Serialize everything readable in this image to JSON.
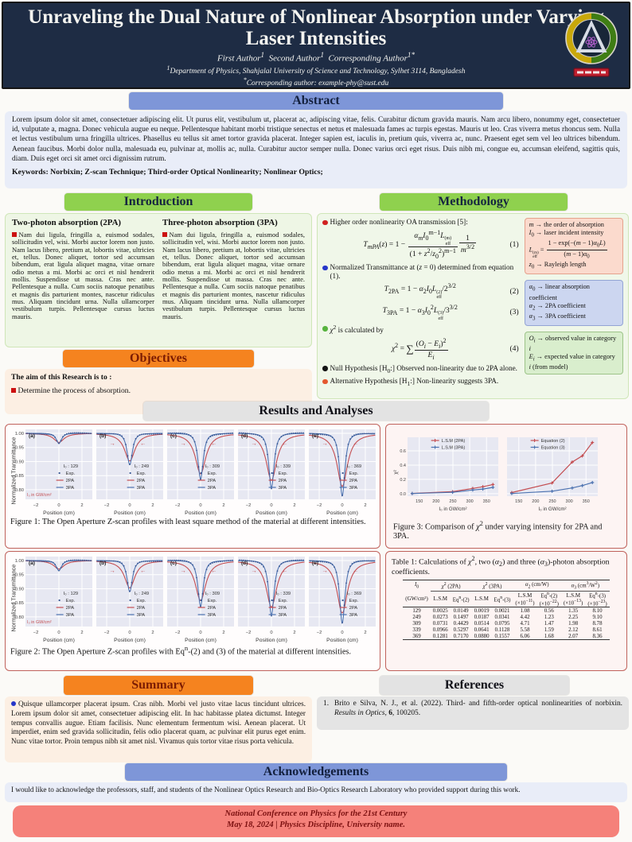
{
  "poster": {
    "title": "Unraveling the Dual Nature of Nonlinear Absorption under Varying Laser Intensities",
    "authors_html": "First Author<sup>1</sup>&nbsp;&nbsp;Second Author<sup>1</sup>&nbsp;&nbsp;Corresponding Author<sup>1*</sup>",
    "affiliation_html": "<sup>1</sup>Department of Physics, Shahjalal University of Science and Technology, Sylhet 3114, Bangladesh",
    "corresponding_html": "<sup>*</sup>Corresponding author: example-phy@sust.edu",
    "logo_name": "university-logo"
  },
  "abstract": {
    "heading": "Abstract",
    "body": "Lorem ipsum dolor sit amet, consectetuer adipiscing elit. Ut purus elit, vestibulum ut, placerat ac, adipiscing vitae, felis. Curabitur dictum gravida mauris. Nam arcu libero, nonummy eget, consectetuer id, vulputate a, magna. Donec vehicula augue eu neque. Pellentesque habitant morbi tristique senectus et netus et malesuada fames ac turpis egestas. Mauris ut leo. Cras viverra metus rhoncus sem. Nulla et lectus vestibulum urna fringilla ultrices. Phasellus eu tellus sit amet tortor gravida placerat. Integer sapien est, iaculis in, pretium quis, viverra ac, nunc. Praesent eget sem vel leo ultrices bibendum. Aenean faucibus. Morbi dolor nulla, malesuada eu, pulvinar at, mollis ac, nulla. Curabitur auctor semper nulla. Donec varius orci eget risus. Duis nibh mi, congue eu, accumsan eleifend, sagittis quis, diam. Duis eget orci sit amet orci dignissim rutrum.",
    "keywords": "Keywords: Norbixin; Z-scan Technique; Third-order Optical Nonlinearity; Nonlinear Optics;"
  },
  "introduction": {
    "heading": "Introduction",
    "columns": [
      {
        "title": "Two-photon absorption (2PA)",
        "body": "Nam dui ligula, fringilla a, euismod sodales, sollicitudin vel, wisi. Morbi auctor lorem non justo. Nam lacus libero, pretium at, lobortis vitae, ultricies et, tellus. Donec aliquet, tortor sed accumsan bibendum, erat ligula aliquet magna, vitae ornare odio metus a mi. Morbi ac orci et nisl hendrerit mollis. Suspendisse ut massa. Cras nec ante. Pellentesque a nulla. Cum sociis natoque penatibus et magnis dis parturient montes, nascetur ridiculus mus. Aliquam tincidunt urna. Nulla ullamcorper vestibulum turpis. Pellentesque cursus luctus mauris."
      },
      {
        "title": "Three-photon absorption (3PA)",
        "body": "Nam dui ligula, fringilla a, euismod sodales, sollicitudin vel, wisi. Morbi auctor lorem non justo. Nam lacus libero, pretium at, lobortis vitae, ultricies et, tellus. Donec aliquet, tortor sed accumsan bibendum, erat ligula aliquet magna, vitae ornare odio metus a mi. Morbi ac orci et nisl hendrerit mollis. Suspendisse ut massa. Cras nec ante. Pellentesque a nulla. Cum sociis natoque penatibus et magnis dis parturient montes, nascetur ridiculus mus. Aliquam tincidunt urna. Nulla ullamcorper vestibulum turpis. Pellentesque cursus luctus mauris."
      }
    ]
  },
  "objectives": {
    "heading": "Objectives",
    "lead": "The aim of this Research is to :",
    "items": [
      "Determine the process of absorption."
    ]
  },
  "methodology": {
    "heading": "Methodology",
    "items": [
      {
        "t": "b",
        "c": "#d02020",
        "h": "Higher order nonlinearity OA transmission [5]:"
      },
      {
        "t": "e",
        "tag": "(1)",
        "h": "<i>T<sub>mPA</sub></i>(<i>z</i>) = 1 − <span class='frac'><span class='nu'><i>α<sub>m</sub></i><i>I</i><sub>0</sub><sup>m−1</sup><i>L</i><span class='stk'><span>(m)</span><span>eff</span></span></span><span class='de'>(1 + <i>z</i><sup>2</sup>/<i>z</i><sub>0</sub><sup>2</sup>)<sup>m−1</sup></span></span><span class='frac'><span class='nu'>1</span><span class='de'><i>m</i><sup>3/2</sup></span></span>"
      },
      {
        "t": "b",
        "c": "#2636c9",
        "h": "Normalized Transmittance at (<i>z</i> = 0) determined from equation (1)."
      },
      {
        "t": "e",
        "tag": "(2)",
        "h": "<i>T</i><sub>2PA</sub> = 1 − <i>α</i><sub>2</sub><i>I</i><sub>0</sub><i>L</i><span class='stk'><span>(2)</span><span>eff</span></span>/2<sup>3/2</sup>"
      },
      {
        "t": "e",
        "tag": "(3)",
        "h": "<i>T</i><sub>3PA</sub> = 1 − <i>α</i><sub>3</sub><i>I</i><sub>0</sub><sup>2</sup><i>L</i><span class='stk'><span>(3)</span><span>eff</span></span>/3<sup>3/2</sup>"
      },
      {
        "t": "b",
        "c": "#57b33e",
        "h": "<i>χ</i><sup>2</sup> is calculated by"
      },
      {
        "t": "e",
        "tag": "(4)",
        "h": "<i>χ</i><sup>2</sup> = <span class='sigma'>∑</span><span class='frac'><span class='nu'>(<i>O<sub>i</sub></i> − <i>E<sub>i</sub></i>)<sup>2</sup></span><span class='de'><i>E<sub>i</sub></i></span></span>"
      },
      {
        "t": "b",
        "c": "#141414",
        "h": "Null Hypothesis [H<sub>0</sub>:] Observed non-linearity due to 2PA alone."
      },
      {
        "t": "b",
        "c": "#e4572e",
        "h": "Alternative Hypothesis [H<sub>1</sub>:] Non-linearity suggests 3PA."
      }
    ],
    "boxes": [
      {
        "bg": "#fbdacd",
        "border": "#e5a28c",
        "lines": [
          "<i>m</i> → the order of absorption",
          "<i>I</i><sub>0</sub> → laser incident intensity",
          "<i>L</i><span class='stk'><span>(m)</span><span>eff</span></span> = <span class='frac'><span class='nu'>1 − exp(−(<i>m</i> − 1)<i>α</i><sub>0</sub><i>L</i>)</span><span class='de'>(<i>m</i> − 1)<i>α</i><sub>0</sub></span></span>",
          "<i>z</i><sub>0</sub> → Rayleigh length"
        ]
      },
      {
        "bg": "#ccd6f0",
        "border": "#93a4d4",
        "lines": [
          "<i>α</i><sub>0</sub> → linear absorption coefficient",
          "<i>α</i><sub>2</sub> → 2PA coefficient",
          "<i>α</i><sub>3</sub> → 3PA coefficient"
        ]
      },
      {
        "bg": "#d9eecd",
        "border": "#9dc489",
        "lines": [
          "<i>O<sub>i</sub></i> → observed value in category <i>i</i>",
          "<i>E<sub>i</sub></i> → expected value in category <i>i</i> (from model)"
        ]
      }
    ]
  },
  "results": {
    "heading": "Results and Analyses"
  },
  "figures": {
    "fig1_caption_html": "Figure 1: The Open Aperture Z-scan profiles with least square method of the material at different intensities.",
    "fig2_caption_html": "Figure 2: The Open Aperture Z-scan profiles with Eq<sup>n</sup>-(2) and (3) of the material at different intensities.",
    "fig3_caption_html": "Figure 3: Comparison of <i>χ</i><sup>2</sup> under varying intensity for 2PA and 3PA."
  },
  "table1": {
    "caption_html": "Table 1: Calculations of <i>χ</i><sup>2</sup>, two (<i>α</i><sub>2</sub>) and three (<i>α</i><sub>3</sub>)-photon absorption coefficients.",
    "group_headers": [
      {
        "html": "<i>I</i><sub>0</sub>",
        "span": 1,
        "line": false
      },
      {
        "html": "<i>χ</i><sup>2</sup> (2PA)",
        "span": 2,
        "line": true
      },
      {
        "html": "<i>χ</i><sup>2</sup> (3PA)",
        "span": 2,
        "line": true
      },
      {
        "html": "<i>α</i><sub>2</sub> (cm/W)",
        "span": 2,
        "line": true
      },
      {
        "html": "<i>α</i><sub>3</sub> (cm<sup>3</sup>/W<sup>2</sup>)",
        "span": 2,
        "line": true
      }
    ],
    "sub_headers": [
      "(GW/cm²)",
      "L.S.M",
      "Eq<sup>n</sup>-(2)",
      "L.S.M",
      "Eq<sup>n</sup>-(3)",
      "L.S.M<br>(×10<sup>−11</sup>)",
      "Eq<sup>n</sup>-(2)<br>(×10<sup>−22</sup>)",
      "L.S.M<br>(×10<sup>−13</sup>)",
      "Eq<sup>n</sup>-(3)<br>(×10<sup>−23</sup>)"
    ],
    "rows": [
      [
        "129",
        "0.0025",
        "0.0149",
        "0.0019",
        "0.0021",
        "1.08",
        "0.56",
        "1.35",
        "8.10"
      ],
      [
        "249",
        "0.0273",
        "0.1497",
        "0.0187",
        "0.0341",
        "4.42",
        "1.23",
        "2.25",
        "9.10"
      ],
      [
        "309",
        "0.0731",
        "0.4429",
        "0.0514",
        "0.0795",
        "4.71",
        "1.47",
        "1.98",
        "8.78"
      ],
      [
        "339",
        "0.0966",
        "0.5297",
        "0.0641",
        "0.1128",
        "5.58",
        "1.59",
        "2.12",
        "8.61"
      ],
      [
        "369",
        "0.1281",
        "0.7170",
        "0.0880",
        "0.1557",
        "6.06",
        "1.68",
        "2.07",
        "8.36"
      ]
    ]
  },
  "summary": {
    "heading": "Summary",
    "body": "Quisque ullamcorper placerat ipsum. Cras nibh. Morbi vel justo vitae lacus tincidunt ultrices. Lorem ipsum dolor sit amet, consectetuer adipiscing elit. In hac habitasse platea dictumst. Integer tempus convallis augue. Etiam facilisis. Nunc elementum fermentum wisi. Aenean placerat. Ut imperdiet, enim sed gravida sollicitudin, felis odio placerat quam, ac pulvinar elit purus eget enim. Nunc vitae tortor. Proin tempus nibh sit amet nisl. Vivamus quis tortor vitae risus porta vehicula."
  },
  "references": {
    "heading": "References",
    "items": [
      {
        "num": "1.",
        "html": "Brito e Silva, N. J., et al. (2022).  Third- and fifth-order optical nonlinearities of norbixin. <i>Results in Optics</i>, <b>6</b>, 100205."
      }
    ]
  },
  "acknowledgements": {
    "heading": "Acknowledgements",
    "body": "I would like to acknowledge the professors, staff, and students of the Nonlinear Optics Research and Bio-Optics Research Laboratory who provided support during this work."
  },
  "footer": {
    "line1": "National Conference on Physics for the 21st Century",
    "line2": "May 18, 2024  | Physics Discipline, University name."
  },
  "colors": {
    "header_bg": "#1e2c44",
    "bar_blue": "#7e96d8",
    "bar_green": "#8fd14e",
    "bar_orange": "#f5831f",
    "bar_gray": "#e3e3e3",
    "figure_border": "#c0625c",
    "footer_bg": "#f5817a",
    "plot_bg": "#e7e8f2",
    "series_red": "#c44e52",
    "series_blue": "#4c72b0",
    "exp_dot": "#3a5894"
  },
  "chart_data": [
    {
      "id": "figure1",
      "type": "line",
      "kind": "zscan",
      "title": "Open Aperture Z-scan, least square method",
      "xlabel": "Position (cm)",
      "ylabel": "Normalized Transmittance",
      "xlim": [
        -2.9,
        2.9
      ],
      "ylim": [
        0.766,
        1.014
      ],
      "xticks": [
        -2,
        0,
        2
      ],
      "yticks": [
        1.0,
        0.95,
        0.9,
        0.85,
        0.8
      ],
      "note": "I₀ in GW/cm²",
      "legend": [
        "Exp.",
        "2PA",
        "3PA"
      ],
      "colors": {
        "exp": "#3a5894",
        "pa2": "#c44e52",
        "pa3": "#4c72b0"
      },
      "panels": [
        {
          "label": "(a)",
          "I0": "129",
          "min_2PA": 0.968,
          "min_3PA": 0.964,
          "arrows": false
        },
        {
          "label": "(b)",
          "I0": "249",
          "min_2PA": 0.902,
          "min_3PA": 0.888,
          "arrows": true
        },
        {
          "label": "(c)",
          "I0": "309",
          "min_2PA": 0.856,
          "min_3PA": 0.838,
          "arrows": true
        },
        {
          "label": "(d)",
          "I0": "339",
          "min_2PA": 0.833,
          "min_3PA": 0.806,
          "arrows": true
        },
        {
          "label": "(e)",
          "I0": "369",
          "min_2PA": 0.812,
          "min_3PA": 0.778,
          "arrows": true
        }
      ]
    },
    {
      "id": "figure2",
      "type": "line",
      "kind": "zscan",
      "title": "Open Aperture Z-scan, Eqn-(2) and (3)",
      "xlabel": "Position (cm)",
      "ylabel": "Normalized Transmittance",
      "xlim": [
        -2.9,
        2.9
      ],
      "ylim": [
        0.766,
        1.014
      ],
      "xticks": [
        -2,
        0,
        2
      ],
      "yticks": [
        1.0,
        0.95,
        0.9,
        0.85,
        0.8
      ],
      "note": "I₀ in GW/cm²",
      "legend": [
        "Exp.",
        "2PA",
        "3PA"
      ],
      "colors": {
        "exp": "#3a5894",
        "pa2": "#c44e52",
        "pa3": "#4c72b0"
      },
      "panels": [
        {
          "label": "(a)",
          "I0": "129",
          "min_2PA": 0.97,
          "min_3PA": 0.964,
          "arrows": false
        },
        {
          "label": "(b)",
          "I0": "249",
          "min_2PA": 0.903,
          "min_3PA": 0.889,
          "arrows": true
        },
        {
          "label": "(c)",
          "I0": "309",
          "min_2PA": 0.858,
          "min_3PA": 0.838,
          "arrows": true
        },
        {
          "label": "(d)",
          "I0": "339",
          "min_2PA": 0.835,
          "min_3PA": 0.806,
          "arrows": true
        },
        {
          "label": "(e)",
          "I0": "369",
          "min_2PA": 0.814,
          "min_3PA": 0.778,
          "arrows": true
        }
      ]
    },
    {
      "id": "figure3",
      "type": "line",
      "kind": "chi2",
      "x": [
        129,
        249,
        309,
        339,
        369
      ],
      "xlabel": "I₀ in GW/cm²",
      "ylabel": "χ²",
      "xticks": [
        150,
        200,
        250,
        300,
        350
      ],
      "yticks": [
        0.0,
        0.2,
        0.4,
        0.6
      ],
      "xlim": [
        115,
        385
      ],
      "ylim": [
        -0.035,
        0.79
      ],
      "colors": [
        "#c44e52",
        "#4c72b0"
      ],
      "subplots": [
        {
          "legend": [
            "L.S.M (2PA)",
            "L.S.M (3PA)"
          ],
          "series": [
            {
              "name": "L.S.M (2PA)",
              "values": [
                0.0025,
                0.0273,
                0.0731,
                0.0966,
                0.1281
              ]
            },
            {
              "name": "L.S.M (3PA)",
              "values": [
                0.0019,
                0.0187,
                0.0514,
                0.0641,
                0.088
              ]
            }
          ]
        },
        {
          "legend": [
            "Equation (2)",
            "Equation (3)"
          ],
          "series": [
            {
              "name": "Equation (2)",
              "values": [
                0.0149,
                0.1497,
                0.4429,
                0.5297,
                0.717
              ]
            },
            {
              "name": "Equation (3)",
              "values": [
                0.0021,
                0.0341,
                0.0795,
                0.1128,
                0.1557
              ]
            }
          ]
        }
      ]
    }
  ]
}
